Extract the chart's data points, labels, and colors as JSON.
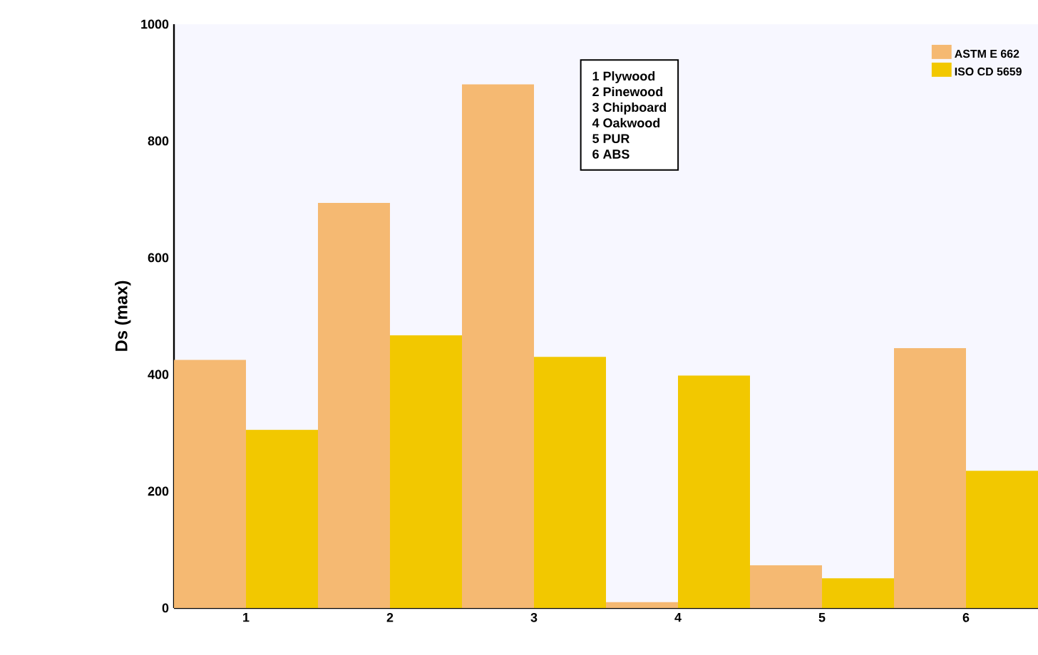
{
  "chart_data": {
    "type": "bar",
    "ylabel": "Ds (max)",
    "categories": [
      "1",
      "2",
      "3",
      "4",
      "5",
      "6"
    ],
    "series": [
      {
        "name": "ASTM E 662",
        "color": "#f5b972",
        "values": [
          425,
          694,
          897,
          10,
          73,
          445
        ]
      },
      {
        "name": "ISO CD 5659",
        "color": "#f2c800",
        "values": [
          305,
          467,
          430,
          398,
          51,
          235
        ]
      }
    ],
    "ylim": [
      0,
      1000
    ],
    "yticks": [
      0,
      200,
      400,
      600,
      800,
      1000
    ],
    "legend": "top right",
    "annotations": [
      "1 Plywood",
      "2 Pinewood",
      "3 Chipboard",
      "4 Oakwood",
      "5 PUR",
      "6 ABS"
    ]
  }
}
